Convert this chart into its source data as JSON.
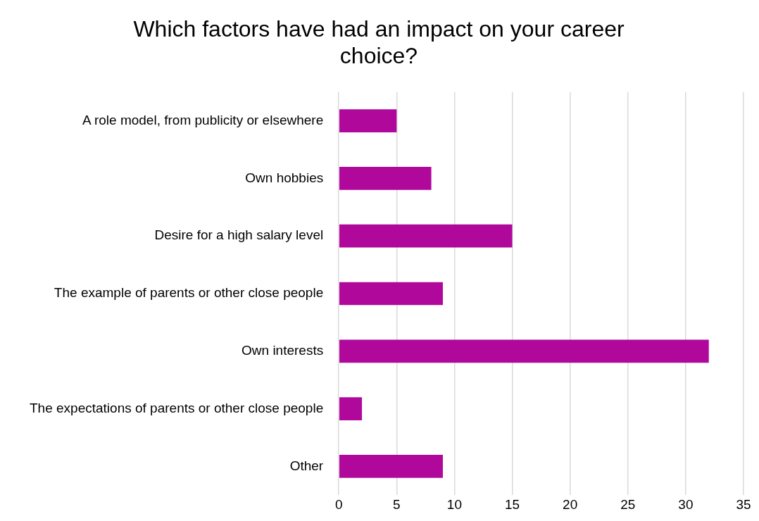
{
  "chart_data": {
    "type": "bar",
    "orientation": "horizontal",
    "title": "Which factors have had an impact on your career choice?",
    "categories": [
      "A role model, from publicity or elsewhere",
      "Own hobbies",
      "Desire for a high salary level",
      "The example of parents or other close people",
      "Own interests",
      "The expectations of parents or other close people",
      "Other"
    ],
    "values": [
      5,
      8,
      15,
      9,
      32,
      2,
      9
    ],
    "color": "#b0089a",
    "xlim": [
      0,
      35
    ],
    "xticks": [
      0,
      5,
      10,
      15,
      20,
      25,
      30,
      35
    ],
    "grid": "x",
    "legend": false
  }
}
